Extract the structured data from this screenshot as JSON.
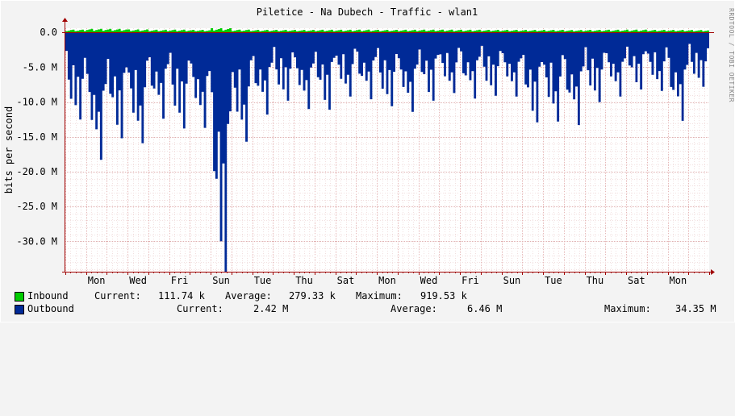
{
  "chart_data": {
    "type": "area",
    "title": "Piletice - Na Dubech - Traffic - wlan1",
    "ylabel": "bits per second",
    "watermark": "RRDTOOL / TOBI OETIKER",
    "ylim": [
      -34.35,
      0.6
    ],
    "ytick_values": [
      0,
      -5,
      -10,
      -15,
      -20,
      -25,
      -30
    ],
    "ytick_labels": [
      "0.0",
      "-5.0 M",
      "-10.0 M",
      "-15.0 M",
      "-20.0 M",
      "-25.0 M",
      "-30.0 M"
    ],
    "x_day_labels": [
      "Mon",
      "Wed",
      "Fri",
      "Sun",
      "Tue",
      "Thu",
      "Sat",
      "Mon",
      "Wed",
      "Fri",
      "Sun",
      "Tue",
      "Thu",
      "Sat",
      "Mon"
    ],
    "x_day_positions": [
      1.5,
      3.5,
      5.5,
      7.5,
      9.5,
      11.5,
      13.5,
      15.5,
      17.5,
      19.5,
      21.5,
      23.5,
      25.5,
      27.5,
      29.5
    ],
    "xlim": [
      0,
      31
    ],
    "grid": true,
    "colors": {
      "inbound": "#00cc00",
      "outbound": "#002a97",
      "grid": "#e0b0b0",
      "axis": "#a00000",
      "plot_bg": "#ffffff"
    },
    "series": [
      {
        "name": "Inbound",
        "unit": "bits per second (k)",
        "daily_peak_k": [
          620,
          800,
          780,
          650,
          590,
          600,
          560,
          919.53,
          620,
          560,
          560,
          550,
          580,
          590,
          600,
          560,
          590,
          610,
          600,
          590,
          570,
          560,
          550,
          560,
          520,
          560,
          580,
          600,
          560,
          540,
          520
        ]
      },
      {
        "name": "Outbound",
        "unit": "bits per second (M)",
        "daily_peak_M": [
          -12.5,
          -18.3,
          -15.2,
          -15.9,
          -12.4,
          -13.8,
          -13.7,
          -34.35,
          -15.7,
          -11.8,
          -9.8,
          -11.0,
          -11.1,
          -9.2,
          -9.6,
          -10.6,
          -11.4,
          -9.8,
          -8.7,
          -9.5,
          -9.1,
          -9.2,
          -12.9,
          -12.8,
          -13.3,
          -10.0,
          -9.2,
          -8.2,
          -8.4,
          -12.7,
          -7.8
        ]
      }
    ]
  },
  "legend": {
    "inbound": {
      "name": "Inbound",
      "current_label": "Current:",
      "current_value": "111.74 k",
      "average_label": "Average:",
      "average_value": "279.33 k",
      "maximum_label": "Maximum:",
      "maximum_value": "919.53 k"
    },
    "outbound": {
      "name": "Outbound",
      "current_label": "Current:",
      "current_value": "2.42 M",
      "average_label": "Average:",
      "average_value": "6.46 M",
      "maximum_label": "Maximum:",
      "maximum_value": "34.35 M"
    }
  }
}
